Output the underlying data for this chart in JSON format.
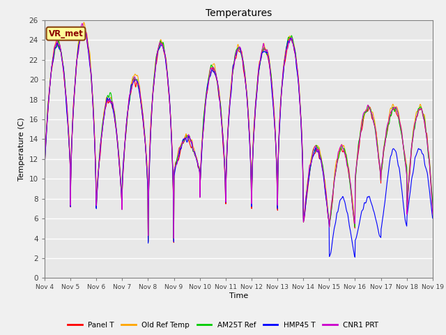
{
  "title": "Temperatures",
  "xlabel": "Time",
  "ylabel": "Temperature (C)",
  "ylim": [
    0,
    26
  ],
  "annotation_text": "VR_met",
  "annotation_facecolor": "#ffff99",
  "annotation_edgecolor": "#8B4513",
  "annotation_textcolor": "#8B0000",
  "series_colors": [
    "#ff0000",
    "#ffa500",
    "#00cc00",
    "#0000ff",
    "#cc00cc"
  ],
  "series_labels": [
    "Panel T",
    "Old Ref Temp",
    "AM25T Ref",
    "HMP45 T",
    "CNR1 PRT"
  ],
  "xtick_labels": [
    "Nov 4",
    "Nov 5",
    "Nov 6",
    "Nov 7",
    "Nov 8",
    "Nov 9",
    "Nov 10",
    "Nov 11",
    "Nov 12",
    "Nov 13",
    "Nov 14",
    "Nov 15",
    "Nov 16",
    "Nov 17",
    "Nov 18",
    "Nov 19"
  ],
  "plot_bg_color": "#e8e8e8",
  "fig_bg_color": "#f0f0f0",
  "grid_color": "#ffffff",
  "linewidth": 0.8,
  "n_days": 15,
  "pts_per_day": 96,
  "yticks": [
    0,
    2,
    4,
    6,
    8,
    10,
    12,
    14,
    16,
    18,
    20,
    22,
    24,
    26
  ]
}
